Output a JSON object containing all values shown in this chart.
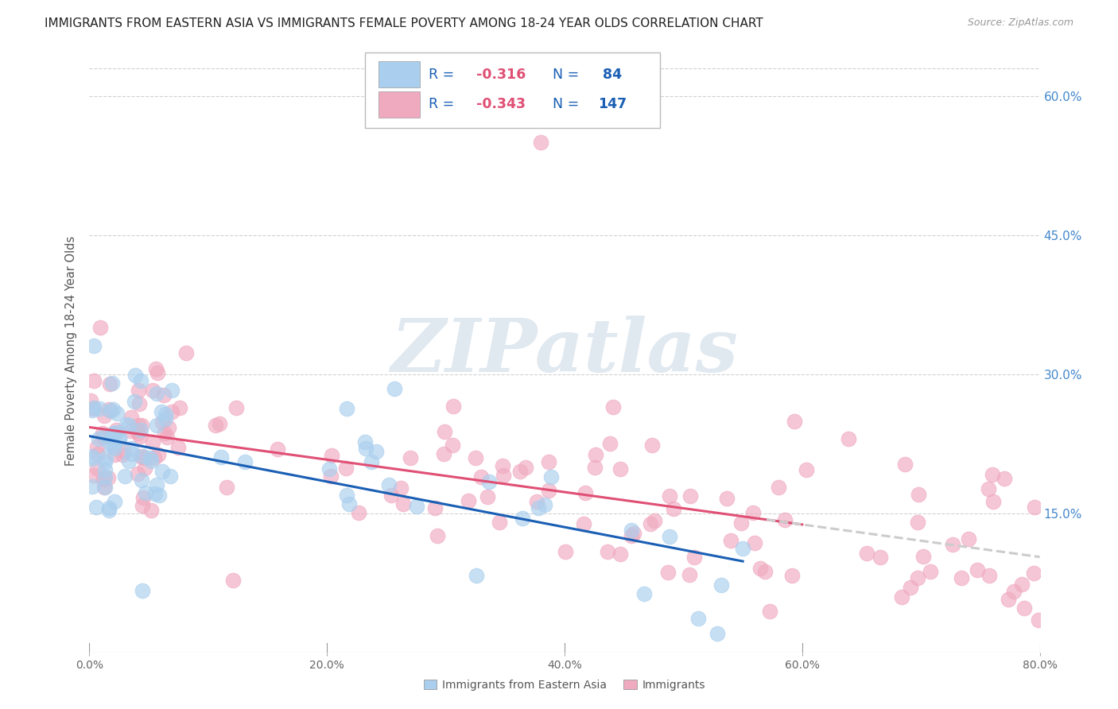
{
  "title": "IMMIGRANTS FROM EASTERN ASIA VS IMMIGRANTS FEMALE POVERTY AMONG 18-24 YEAR OLDS CORRELATION CHART",
  "source": "Source: ZipAtlas.com",
  "ylabel": "Female Poverty Among 18-24 Year Olds",
  "blue_R": -0.316,
  "blue_N": 84,
  "pink_R": -0.343,
  "pink_N": 147,
  "blue_label": "Immigrants from Eastern Asia",
  "pink_label": "Immigrants",
  "xlim": [
    0.0,
    0.8
  ],
  "ylim": [
    0.0,
    0.65
  ],
  "yticks": [
    0.15,
    0.3,
    0.45,
    0.6
  ],
  "ytick_labels": [
    "15.0%",
    "30.0%",
    "45.0%",
    "60.0%"
  ],
  "xticks": [
    0.0,
    0.2,
    0.4,
    0.6,
    0.8
  ],
  "xtick_labels": [
    "0.0%",
    "20.0%",
    "40.0%",
    "60.0%",
    "80.0%"
  ],
  "blue_scatter_color": "#aacfee",
  "pink_scatter_color": "#f0aac0",
  "blue_line_color": "#1a5fb4",
  "pink_line_color": "#e05075",
  "pink_dash_color": "#cccccc",
  "background_color": "#ffffff",
  "grid_color": "#cccccc",
  "watermark_text": "ZIPatlas",
  "watermark_color": "#e0e8f0",
  "legend_text_color": "#1a5fb4",
  "legend_R_color": "#e05075",
  "right_axis_color": "#4488cc"
}
